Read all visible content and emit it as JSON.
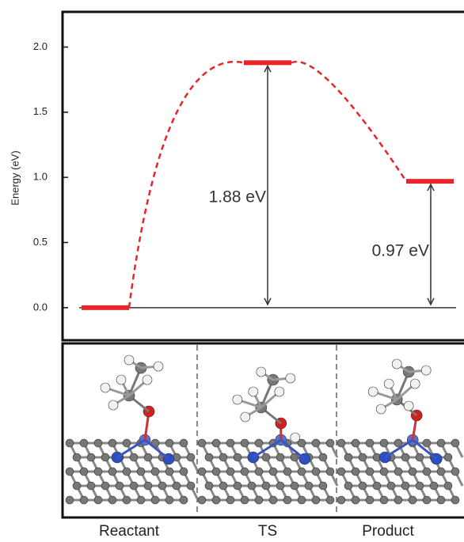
{
  "chart_data": {
    "type": "energy_profile",
    "ylabel": "Energy (eV)",
    "categories": [
      "Reactant",
      "TS",
      "Product"
    ],
    "values": [
      0,
      1.88,
      0.97
    ],
    "value_labels": [
      null,
      "1.88 eV",
      "0.97 eV"
    ],
    "color": "#e8262a",
    "ylim": [
      -0.25,
      2.27
    ],
    "yticks": [
      {
        "value": 0,
        "label": "0.0"
      },
      0.5,
      {
        "value": 1,
        "label": "1.0"
      },
      1.5,
      {
        "value": 2,
        "label": "2.0"
      }
    ]
  }
}
